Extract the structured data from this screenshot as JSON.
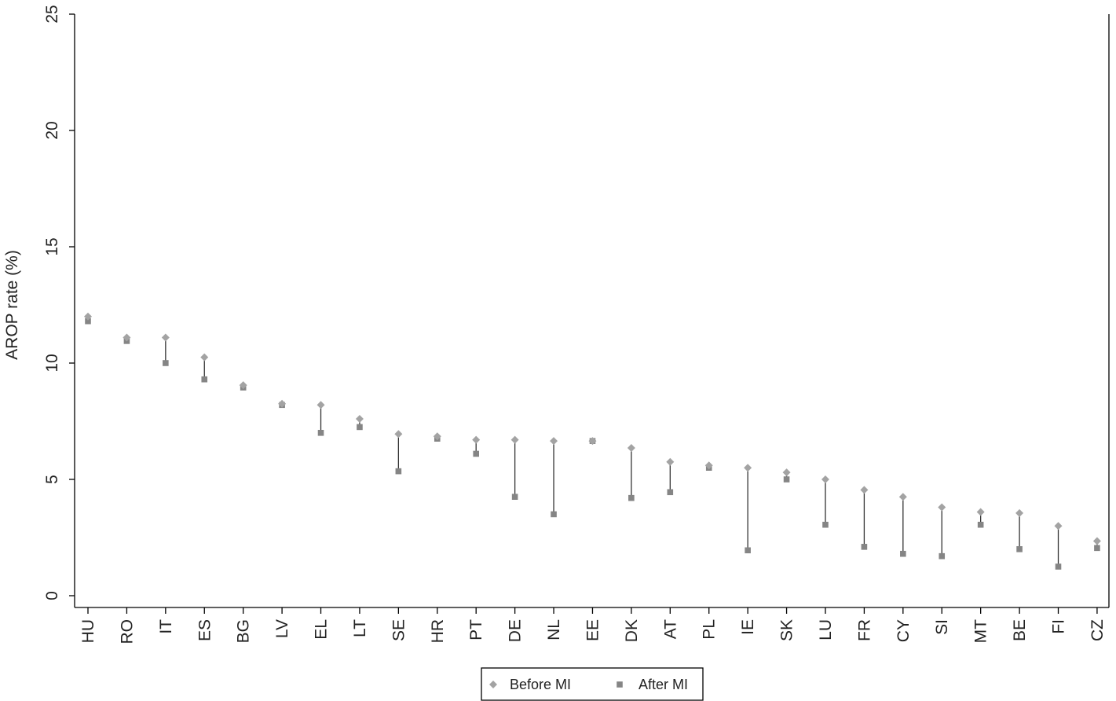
{
  "chart_data": {
    "type": "scatter",
    "ylabel": "AROP rate (%)",
    "ylim": [
      0,
      25
    ],
    "yticks": [
      "0",
      "5",
      "10",
      "15",
      "20",
      "25"
    ],
    "categories": [
      "HU",
      "RO",
      "IT",
      "ES",
      "BG",
      "LV",
      "EL",
      "LT",
      "SE",
      "HR",
      "PT",
      "DE",
      "NL",
      "EE",
      "DK",
      "AT",
      "PL",
      "IE",
      "SK",
      "LU",
      "FR",
      "CY",
      "SI",
      "MT",
      "BE",
      "FI",
      "CZ"
    ],
    "series": [
      {
        "name": "Before MI",
        "marker": "diamond",
        "color": "#a3a3a3",
        "values": [
          12.0,
          11.1,
          11.1,
          10.25,
          9.05,
          8.25,
          8.2,
          7.6,
          6.95,
          6.85,
          6.7,
          6.7,
          6.65,
          6.65,
          6.35,
          5.75,
          5.6,
          5.5,
          5.3,
          5.0,
          4.55,
          4.25,
          3.8,
          3.6,
          3.55,
          3.0,
          2.35
        ]
      },
      {
        "name": "After MI",
        "marker": "square",
        "color": "#858585",
        "values": [
          11.8,
          10.95,
          10.0,
          9.3,
          8.95,
          8.2,
          7.0,
          7.25,
          5.35,
          6.75,
          6.1,
          4.25,
          3.5,
          6.65,
          4.2,
          4.45,
          5.5,
          1.95,
          5.0,
          3.05,
          2.1,
          1.8,
          1.7,
          3.05,
          2.0,
          1.25,
          2.05
        ]
      }
    ],
    "connector_color": "#333333",
    "legend_position": "bottom-center",
    "grid": false
  }
}
